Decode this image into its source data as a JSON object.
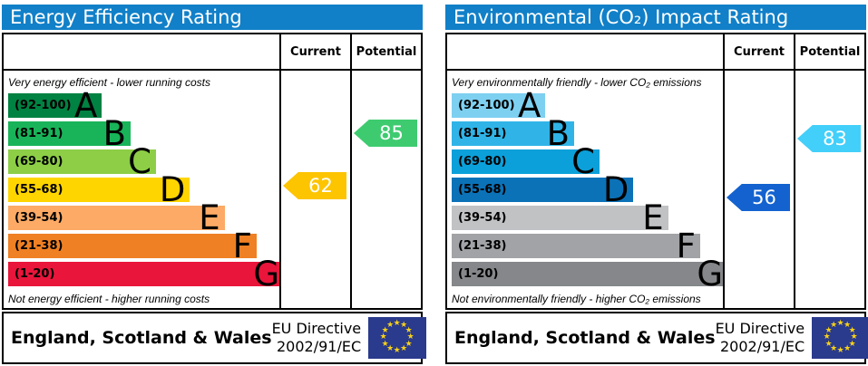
{
  "eu_flag": {
    "background": "#2a3a8c",
    "star_color": "#f7d117"
  },
  "panels": [
    {
      "title": "Energy Efficiency Rating",
      "title_bar_color": "#1180c8",
      "header": {
        "current": "Current",
        "potential": "Potential"
      },
      "top_caption": "Very energy efficient - lower running costs",
      "bottom_caption": "Not energy efficient - higher running costs",
      "bands": [
        {
          "label": "(92-100)",
          "letter": "A",
          "min": 92,
          "max": 100,
          "width_pct": 34,
          "color": "#008242"
        },
        {
          "label": "(81-91)",
          "letter": "B",
          "min": 81,
          "max": 91,
          "width_pct": 44.4,
          "color": "#19b459"
        },
        {
          "label": "(69-80)",
          "letter": "C",
          "min": 69,
          "max": 80,
          "width_pct": 53.6,
          "color": "#8dce46"
        },
        {
          "label": "(55-68)",
          "letter": "D",
          "min": 55,
          "max": 68,
          "width_pct": 65.9,
          "color": "#ffd500"
        },
        {
          "label": "(39-54)",
          "letter": "E",
          "min": 39,
          "max": 54,
          "width_pct": 78.5,
          "color": "#fcaa65"
        },
        {
          "label": "(21-38)",
          "letter": "F",
          "min": 21,
          "max": 38,
          "width_pct": 90.1,
          "color": "#ef8023"
        },
        {
          "label": "(1-20)",
          "letter": "G",
          "min": 1,
          "max": 20,
          "width_pct": 100,
          "color": "#e9153b"
        }
      ],
      "current": {
        "value": 62,
        "color": "#fdc400"
      },
      "potential": {
        "value": 85,
        "color": "#3ecb70"
      },
      "footer": {
        "region": "England, Scotland & Wales",
        "directive_line1": "EU Directive",
        "directive_line2": "2002/91/EC"
      }
    },
    {
      "title": "Environmental (CO₂) Impact Rating",
      "title_bar_color": "#1180c8",
      "header": {
        "current": "Current",
        "potential": "Potential"
      },
      "top_caption": "Very environmentally friendly - lower CO₂ emissions",
      "bottom_caption": "Not environmentally friendly - higher CO₂ emissions",
      "bands": [
        {
          "label": "(92-100)",
          "letter": "A",
          "min": 92,
          "max": 100,
          "width_pct": 34,
          "color": "#7ed0f1"
        },
        {
          "label": "(81-91)",
          "letter": "B",
          "min": 81,
          "max": 91,
          "width_pct": 44.4,
          "color": "#30b4e7"
        },
        {
          "label": "(69-80)",
          "letter": "C",
          "min": 69,
          "max": 80,
          "width_pct": 53.6,
          "color": "#0ba0da"
        },
        {
          "label": "(55-68)",
          "letter": "D",
          "min": 55,
          "max": 68,
          "width_pct": 65.9,
          "color": "#0b72b8"
        },
        {
          "label": "(39-54)",
          "letter": "E",
          "min": 39,
          "max": 54,
          "width_pct": 78.5,
          "color": "#c1c2c4"
        },
        {
          "label": "(21-38)",
          "letter": "F",
          "min": 21,
          "max": 38,
          "width_pct": 90.1,
          "color": "#a1a3a6"
        },
        {
          "label": "(1-20)",
          "letter": "G",
          "min": 1,
          "max": 20,
          "width_pct": 100,
          "color": "#85878a"
        }
      ],
      "current": {
        "value": 56,
        "color": "#1362cf"
      },
      "potential": {
        "value": 83,
        "color": "#42cffa"
      },
      "footer": {
        "region": "England, Scotland & Wales",
        "directive_line1": "EU Directive",
        "directive_line2": "2002/91/EC"
      }
    }
  ],
  "chart_data": [
    {
      "type": "bar",
      "title": "Energy Efficiency Rating",
      "categories": [
        "A (92-100)",
        "B (81-91)",
        "C (69-80)",
        "D (55-68)",
        "E (39-54)",
        "F (21-38)",
        "G (1-20)"
      ],
      "series": [
        {
          "name": "Current",
          "values": [
            62
          ],
          "band": "D"
        },
        {
          "name": "Potential",
          "values": [
            85
          ],
          "band": "B"
        }
      ],
      "scale": "1-100, A best",
      "annotations": [
        "Very energy efficient - lower running costs",
        "Not energy efficient - higher running costs"
      ]
    },
    {
      "type": "bar",
      "title": "Environmental (CO₂) Impact Rating",
      "categories": [
        "A (92-100)",
        "B (81-91)",
        "C (69-80)",
        "D (55-68)",
        "E (39-54)",
        "F (21-38)",
        "G (1-20)"
      ],
      "series": [
        {
          "name": "Current",
          "values": [
            56
          ],
          "band": "D"
        },
        {
          "name": "Potential",
          "values": [
            83
          ],
          "band": "B"
        }
      ],
      "scale": "1-100, A best",
      "annotations": [
        "Very environmentally friendly - lower CO₂ emissions",
        "Not environmentally friendly - higher CO₂ emissions"
      ]
    }
  ]
}
